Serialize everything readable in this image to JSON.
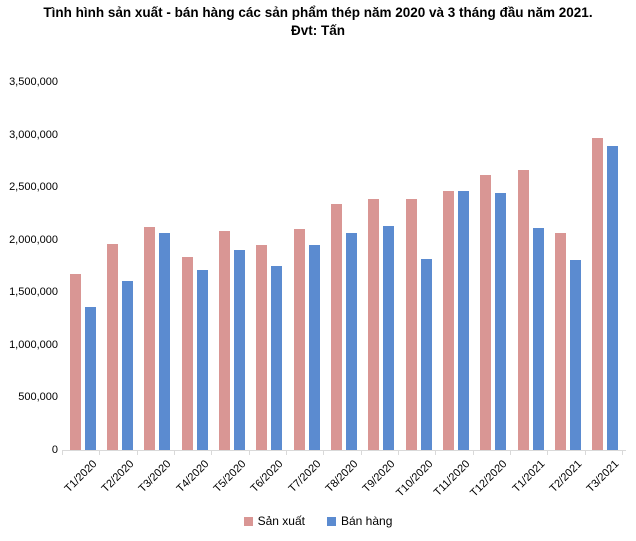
{
  "title": {
    "line1": "Tình hình sản xuất - bán hàng các sản phẩm thép năm 2020 và 3 tháng đầu năm 2021.",
    "line2": "Đvt: Tấn"
  },
  "chart_data": {
    "type": "bar",
    "title": "Tình hình sản xuất - bán hàng các sản phẩm thép năm 2020 và 3 tháng đầu năm 2021.",
    "unit_label": "Đvt: Tấn",
    "categories": [
      "T1/2020",
      "T2/2020",
      "T3/2020",
      "T4/2020",
      "T5/2020",
      "T6/2020",
      "T7/2020",
      "T8/2020",
      "T9/2020",
      "T10/2020",
      "T11/2020",
      "T12/2020",
      "T1/2021",
      "T2/2021",
      "T3/2021"
    ],
    "series": [
      {
        "name": "Sản xuất",
        "color": "#D99694",
        "values": [
          1670000,
          1960000,
          2120000,
          1840000,
          2080000,
          1950000,
          2100000,
          2340000,
          2390000,
          2390000,
          2460000,
          2620000,
          2660000,
          2060000,
          2970000
        ]
      },
      {
        "name": "Bán hàng",
        "color": "#5B8BD0",
        "values": [
          1360000,
          1610000,
          2060000,
          1710000,
          1900000,
          1750000,
          1950000,
          2060000,
          2130000,
          1820000,
          2460000,
          2440000,
          2110000,
          1810000,
          2890000
        ]
      }
    ],
    "ylim": [
      0,
      3500000
    ],
    "ytick_step": 500000,
    "ytick_labels": [
      "0",
      "500,000",
      "1,000,000",
      "1,500,000",
      "2,000,000",
      "2,500,000",
      "3,000,000",
      "3,500,000"
    ],
    "grid": false,
    "legend_position": "bottom",
    "axis_color": "#D9D9D9"
  }
}
